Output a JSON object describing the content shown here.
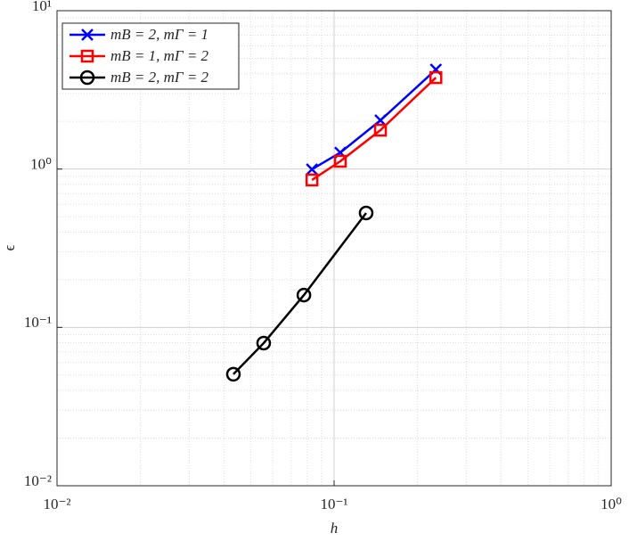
{
  "chart_data": {
    "type": "line",
    "x_label": "h",
    "y_label": "ϵ",
    "log_x": true,
    "log_y": true,
    "grid": true,
    "minor_grid": true,
    "legend": "upper left",
    "xlim": [
      0.01,
      1
    ],
    "ylim": [
      0.01,
      10
    ],
    "xticks": [
      {
        "value": 0.01,
        "label": "10⁻²"
      },
      {
        "value": 0.1,
        "label": "10⁻¹"
      },
      {
        "value": 1,
        "label": "10⁰"
      }
    ],
    "yticks": [
      {
        "value": 0.01,
        "label": "10⁻²"
      },
      {
        "value": 0.1,
        "label": "10⁻¹"
      },
      {
        "value": 1,
        "label": "10⁰"
      },
      {
        "value": 10,
        "label": "10¹"
      }
    ],
    "series": [
      {
        "name": "mB = 2,  mΓ = 1",
        "color": "#0000ff",
        "marker": "x",
        "x": [
          0.0832,
          0.1053,
          0.147,
          0.233
        ],
        "values": [
          0.996,
          1.27,
          2.03,
          4.25
        ]
      },
      {
        "name": "mB = 1,  mΓ = 2",
        "color": "#ff0000",
        "marker": "square",
        "x": [
          0.0832,
          0.1053,
          0.147,
          0.233
        ],
        "values": [
          0.853,
          1.12,
          1.76,
          3.78
        ]
      },
      {
        "name": "mB = 2,  mΓ = 2",
        "color": "#000000",
        "marker": "circle",
        "x": [
          0.0433,
          0.0557,
          0.0778,
          0.1305
        ],
        "values": [
          0.0506,
          0.0796,
          0.16,
          0.528
        ]
      }
    ]
  }
}
